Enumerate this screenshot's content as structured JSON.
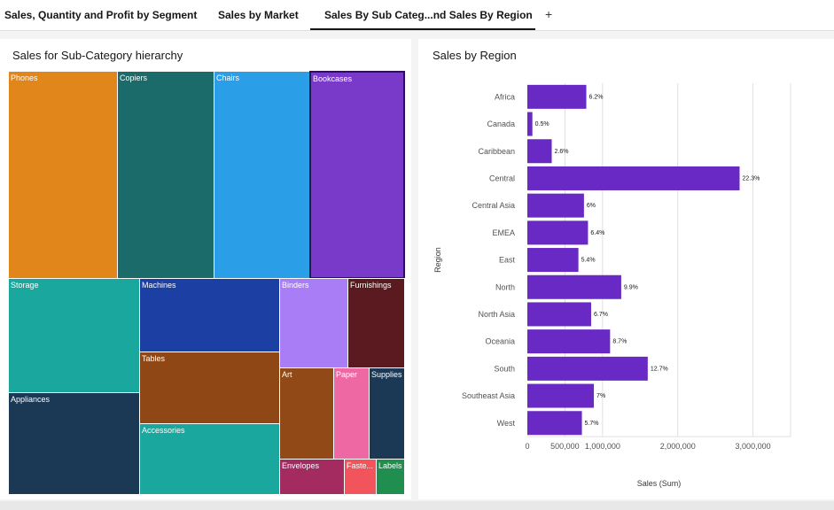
{
  "tabs": [
    {
      "label": "Sales, Quantity and Profit by Segment",
      "active": false
    },
    {
      "label": "Sales by Market",
      "active": false
    },
    {
      "label": "Sales By Sub Categ...nd Sales By Region",
      "active": true
    }
  ],
  "add_tab_label": "+",
  "treemap": {
    "title": "Sales for Sub-Category hierarchy",
    "cells": [
      {
        "label": "Phones",
        "color": "#e0861a"
      },
      {
        "label": "Copiers",
        "color": "#1b6b6b"
      },
      {
        "label": "Chairs",
        "color": "#2b9ee8"
      },
      {
        "label": "Bookcases",
        "color": "#7a3ac9",
        "selected": true
      },
      {
        "label": "Storage",
        "color": "#1aa79e"
      },
      {
        "label": "Machines",
        "color": "#1c3fa3"
      },
      {
        "label": "Binders",
        "color": "#a97df5"
      },
      {
        "label": "Furnishings",
        "color": "#5b1a1f"
      },
      {
        "label": "Appliances",
        "color": "#1b3955"
      },
      {
        "label": "Tables",
        "color": "#904716"
      },
      {
        "label": "Art",
        "color": "#914917"
      },
      {
        "label": "Paper",
        "color": "#ee68a4"
      },
      {
        "label": "Supplies",
        "color": "#1b3955"
      },
      {
        "label": "Accessories",
        "color": "#1aa79e"
      },
      {
        "label": "Envelopes",
        "color": "#a42b60"
      },
      {
        "label": "Faste...",
        "color": "#f2545b"
      },
      {
        "label": "Labels",
        "color": "#1f8e4f"
      }
    ]
  },
  "bar_chart": {
    "title": "Sales by Region",
    "chart_data": {
      "type": "bar",
      "orientation": "horizontal",
      "categories": [
        "Africa",
        "Canada",
        "Caribbean",
        "Central",
        "Central Asia",
        "EMEA",
        "East",
        "North",
        "North Asia",
        "Oceania",
        "South",
        "Southeast Asia",
        "West"
      ],
      "values": [
        783773,
        66929,
        324281,
        2822303,
        752827,
        806161,
        678781,
        1248166,
        848310,
        1100185,
        1600907,
        884423,
        725458
      ],
      "data_labels": [
        "6.2%",
        "0.5%",
        "2.6%",
        "22.3%",
        "6%",
        "6.4%",
        "5.4%",
        "9.9%",
        "6.7%",
        "8.7%",
        "12.7%",
        "7%",
        "5.7%"
      ],
      "xlabel": "Sales (Sum)",
      "ylabel": "Region",
      "xticks": [
        "0",
        "500,000",
        "1,000,000",
        "2,000,000",
        "3,000,000"
      ],
      "xtick_values": [
        0,
        500000,
        1000000,
        2000000,
        3000000
      ],
      "xlim": [
        0,
        3500000
      ],
      "grid": true,
      "bar_color": "#6929c4"
    }
  }
}
